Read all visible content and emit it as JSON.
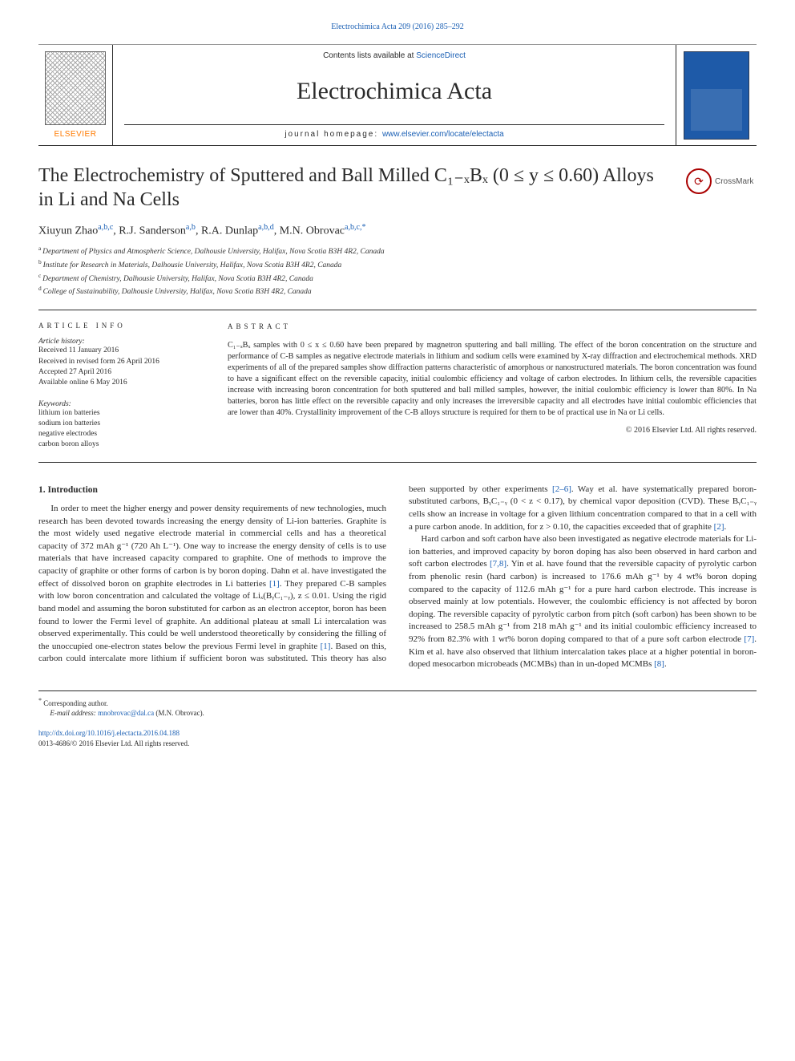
{
  "header": {
    "top_link": "Electrochimica Acta 209 (2016) 285–292",
    "contents_line_prefix": "Contents lists available at ",
    "contents_line_link": "ScienceDirect",
    "journal_title": "Electrochimica Acta",
    "homepage_label": "journal homepage: ",
    "homepage_url": "www.elsevier.com/locate/electacta",
    "elsevier_word": "ELSEVIER"
  },
  "crossmark": {
    "label": "CrossMark",
    "glyph": "⟳"
  },
  "article": {
    "title_html": "The Electrochemistry of Sputtered and Ball Milled C₁₋ₓBₓ (0 ≤ y ≤ 0.60) Alloys in Li and Na Cells",
    "authors": [
      {
        "name": "Xiuyun Zhao",
        "sup": "a,b,c"
      },
      {
        "name": "R.J. Sanderson",
        "sup": "a,b"
      },
      {
        "name": "R.A. Dunlap",
        "sup": "a,b,d"
      },
      {
        "name": "M.N. Obrovac",
        "sup": "a,b,c,*"
      }
    ],
    "affiliations": [
      {
        "label": "a",
        "text": "Department of Physics and Atmospheric Science, Dalhousie University, Halifax, Nova Scotia B3H 4R2, Canada"
      },
      {
        "label": "b",
        "text": "Institute for Research in Materials, Dalhousie University, Halifax, Nova Scotia B3H 4R2, Canada"
      },
      {
        "label": "c",
        "text": "Department of Chemistry, Dalhousie University, Halifax, Nova Scotia B3H 4R2, Canada"
      },
      {
        "label": "d",
        "text": "College of Sustainability, Dalhousie University, Halifax, Nova Scotia B3H 4R2, Canada"
      }
    ]
  },
  "info": {
    "section_label": "ARTICLE INFO",
    "history_head": "Article history:",
    "history": [
      "Received 11 January 2016",
      "Received in revised form 26 April 2016",
      "Accepted 27 April 2016",
      "Available online 6 May 2016"
    ],
    "keywords_head": "Keywords:",
    "keywords": [
      "lithium ion batteries",
      "sodium ion batteries",
      "negative electrodes",
      "carbon boron alloys"
    ]
  },
  "abstract": {
    "section_label": "ABSTRACT",
    "text": "C₁₋ₓBₓ samples with 0 ≤ x ≤ 0.60 have been prepared by magnetron sputtering and ball milling. The effect of the boron concentration on the structure and performance of C-B samples as negative electrode materials in lithium and sodium cells were examined by X-ray diffraction and electrochemical methods. XRD experiments of all of the prepared samples show diffraction patterns characteristic of amorphous or nanostructured materials. The boron concentration was found to have a significant effect on the reversible capacity, initial coulombic efficiency and voltage of carbon electrodes. In lithium cells, the reversible capacities increase with increasing boron concentration for both sputtered and ball milled samples, however, the initial coulombic efficiency is lower than 80%. In Na batteries, boron has little effect on the reversible capacity and only increases the irreversible capacity and all electrodes have initial coulombic efficiencies that are lower than 40%. Crystallinity improvement of the C-B alloys structure is required for them to be of practical use in Na or Li cells.",
    "copyright": "© 2016 Elsevier Ltd. All rights reserved."
  },
  "body": {
    "section_num": "1.",
    "section_title": "Introduction",
    "para1": "In order to meet the higher energy and power density requirements of new technologies, much research has been devoted towards increasing the energy density of Li-ion batteries. Graphite is the most widely used negative electrode material in commercial cells and has a theoretical capacity of 372 mAh g⁻¹ (720 Ah L⁻¹). One way to increase the energy density of cells is to use materials that have increased capacity compared to graphite. One of methods to improve the capacity of graphite or other forms of carbon is by boron doping. Dahn et al. have investigated the effect of dissolved boron on graphite electrodes in Li batteries ",
    "ref1": "[1]",
    "para1b": ". They prepared C-B samples with low boron concentration and calculated the voltage of Liₓ(BᵧC₁₋ᵧ), z ≤ 0.01. Using the rigid band model and assuming the boron substituted for carbon as an electron acceptor, boron has been found to lower the Fermi level of graphite. An additional plateau at small Li intercalation was observed experimentally. This could be well understood theoretically by considering the filling of the unoccupied one-electron states below the previous Fermi level in graphite ",
    "ref1b": "[1]",
    "para1c": ". Based on this, carbon could intercalate more lithium if sufficient boron was substituted. This theory has also been supported by other experiments ",
    "ref26": "[2–6]",
    "para1d": ". Way et al. have systematically prepared boron-substituted carbons, BᵧC₁₋ᵧ (0 < z < 0.17), by chemical vapor deposition (CVD). These BᵧC₁₋ᵧ cells show an increase in voltage for a given lithium concentration compared to that in a cell with a pure carbon anode. In addition, for z > 0.10, the capacities exceeded that of graphite ",
    "ref2": "[2]",
    "para1e": ".",
    "para2a": "Hard carbon and soft carbon have also been investigated as negative electrode materials for Li-ion batteries, and improved capacity by boron doping has also been observed in hard carbon and soft carbon electrodes ",
    "ref78": "[7,8]",
    "para2b": ". Yin et al. have found that the reversible capacity of pyrolytic carbon from phenolic resin (hard carbon) is increased to 176.6 mAh g⁻¹ by 4 wt% boron doping compared to the capacity of 112.6 mAh g⁻¹ for a pure hard carbon electrode. This increase is observed mainly at low potentials. However, the coulombic efficiency is not affected by boron doping. The reversible capacity of pyrolytic carbon from pitch (soft carbon) has been shown to be increased to 258.5 mAh g⁻¹ from 218 mAh g⁻¹ and its initial coulombic efficiency increased to 92% from 82.3% with 1 wt% boron doping compared to that of a pure soft carbon electrode ",
    "ref7": "[7]",
    "para2c": ". Kim et al. have also observed that lithium intercalation takes place at a higher potential in boron-doped mesocarbon microbeads (MCMBs) than in un-doped MCMBs ",
    "ref8": "[8]",
    "para2d": "."
  },
  "footer": {
    "corr_label": "Corresponding author.",
    "email_label": "E-mail address: ",
    "email": "mnobrovac@dal.ca",
    "email_name": " (M.N. Obrovac).",
    "doi": "http://dx.doi.org/10.1016/j.electacta.2016.04.188",
    "issn_line": "0013-4686/© 2016 Elsevier Ltd. All rights reserved."
  },
  "colors": {
    "link": "#1a5fb4",
    "rule": "#2a2a2a",
    "elsevier_orange": "#ff7a00"
  }
}
